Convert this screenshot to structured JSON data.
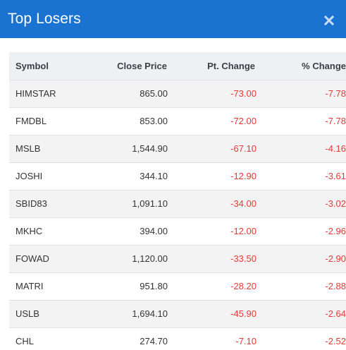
{
  "header": {
    "title": "Top Losers",
    "close_icon": "close-icon"
  },
  "colors": {
    "header_bg": "#1a73d1",
    "negative": "#e53935"
  },
  "table": {
    "columns": [
      "Symbol",
      "Close Price",
      "Pt. Change",
      "% Change"
    ],
    "rows": [
      {
        "symbol": "HIMSTAR",
        "close": "865.00",
        "pt": "-73.00",
        "pct": "-7.78"
      },
      {
        "symbol": "FMDBL",
        "close": "853.00",
        "pt": "-72.00",
        "pct": "-7.78"
      },
      {
        "symbol": "MSLB",
        "close": "1,544.90",
        "pt": "-67.10",
        "pct": "-4.16"
      },
      {
        "symbol": "JOSHI",
        "close": "344.10",
        "pt": "-12.90",
        "pct": "-3.61"
      },
      {
        "symbol": "SBID83",
        "close": "1,091.10",
        "pt": "-34.00",
        "pct": "-3.02"
      },
      {
        "symbol": "MKHC",
        "close": "394.00",
        "pt": "-12.00",
        "pct": "-2.96"
      },
      {
        "symbol": "FOWAD",
        "close": "1,120.00",
        "pt": "-33.50",
        "pct": "-2.90"
      },
      {
        "symbol": "MATRI",
        "close": "951.80",
        "pt": "-28.20",
        "pct": "-2.88"
      },
      {
        "symbol": "USLB",
        "close": "1,694.10",
        "pt": "-45.90",
        "pct": "-2.64"
      },
      {
        "symbol": "CHL",
        "close": "274.70",
        "pt": "-7.10",
        "pct": "-2.52"
      }
    ]
  }
}
